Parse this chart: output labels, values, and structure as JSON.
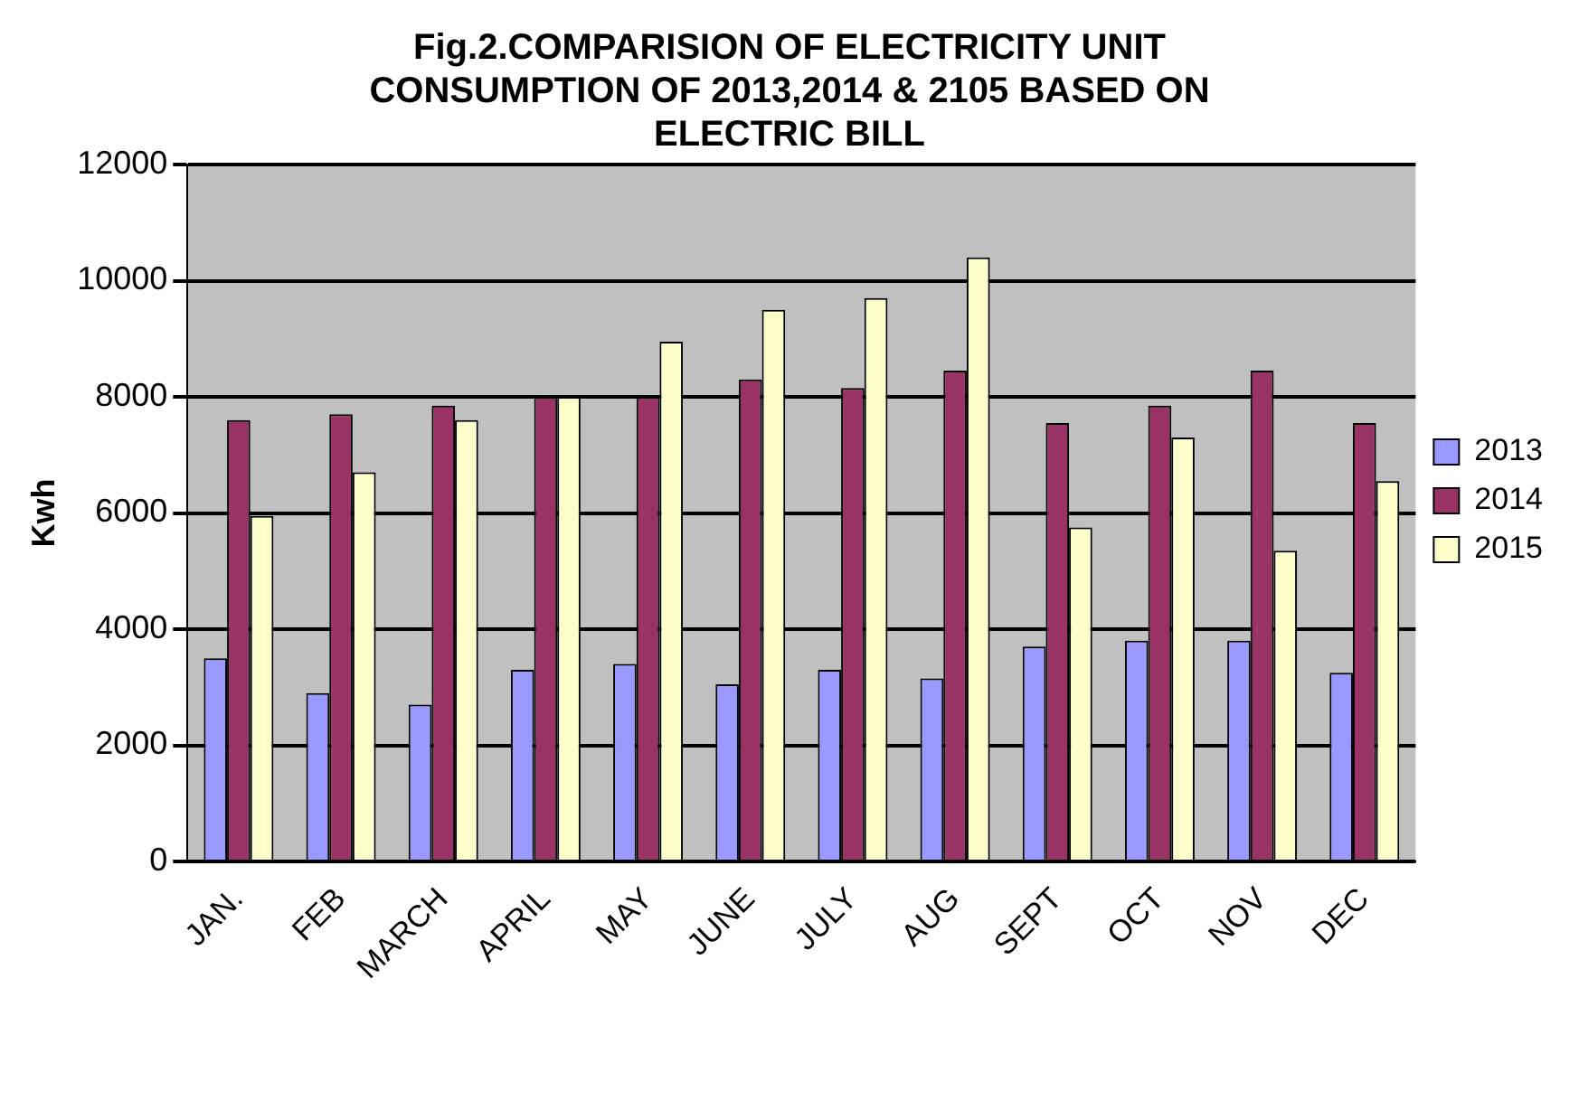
{
  "chart_data": {
    "type": "bar",
    "title": "Fig.2.COMPARISION OF ELECTRICITY UNIT CONSUMPTION OF 2013,2014 & 2105 BASED ON ELECTRIC BILL",
    "ylabel": "Kwh",
    "categories": [
      "JAN.",
      "FEB",
      "MARCH",
      "APRIL",
      "MAY",
      "JUNE",
      "JULY",
      "AUG",
      "SEPT",
      "OCT",
      "NOV",
      "DEC"
    ],
    "series": [
      {
        "name": "2013",
        "color": "#9999ff",
        "values": [
          3500,
          2900,
          2700,
          3300,
          3400,
          3050,
          3300,
          3150,
          3700,
          3800,
          3800,
          3250
        ]
      },
      {
        "name": "2014",
        "color": "#993366",
        "values": [
          7600,
          7700,
          7850,
          8000,
          8000,
          8300,
          8150,
          8450,
          7550,
          7850,
          8450,
          7550
        ]
      },
      {
        "name": "2015",
        "color": "#ffffcc",
        "values": [
          5950,
          6700,
          7600,
          8000,
          8950,
          9500,
          9700,
          10400,
          5750,
          7300,
          5350,
          6550
        ]
      }
    ],
    "ylim": [
      0,
      12000
    ],
    "yticks": [
      0,
      2000,
      4000,
      6000,
      8000,
      10000,
      12000
    ],
    "grid": "y",
    "legend": "right"
  }
}
